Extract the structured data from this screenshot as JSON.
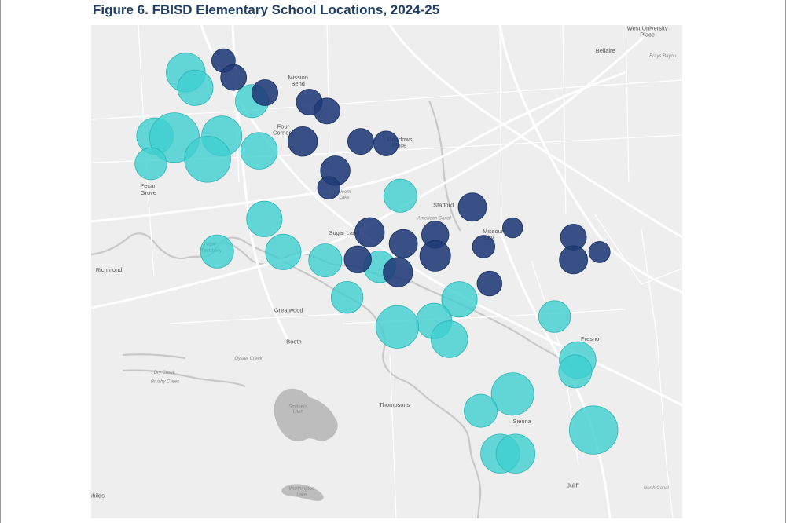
{
  "figure": {
    "title": "Figure 6. FBISD Elementary School Locations, 2024-25"
  },
  "colors": {
    "map_background": "#eeeeee",
    "road": "#ffffff",
    "water": "#bdbdbd",
    "marker_navy": "#1f3a77",
    "marker_teal": "#3fcfcf",
    "title": "#1f3f66"
  },
  "places": [
    {
      "label": "Mission",
      "lat": 0.89,
      "lon": 0.35
    },
    {
      "label": "Bend",
      "lat": 0.877,
      "lon": 0.35
    },
    {
      "label": "Four",
      "lat": 0.791,
      "lon": 0.325
    },
    {
      "label": "Corners",
      "lat": 0.778,
      "lon": 0.325
    },
    {
      "label": "Meadows",
      "lat": 0.764,
      "lon": 0.522
    },
    {
      "label": "Place",
      "lat": 0.752,
      "lon": 0.521
    },
    {
      "label": "Pecan",
      "lat": 0.67,
      "lon": 0.097
    },
    {
      "label": "Grove",
      "lat": 0.656,
      "lon": 0.097
    },
    {
      "label": "Stafford",
      "lat": 0.631,
      "lon": 0.596
    },
    {
      "label": "Sugar Land",
      "lat": 0.575,
      "lon": 0.428
    },
    {
      "label": "Missouri",
      "lat": 0.578,
      "lon": 0.681
    },
    {
      "label": "City",
      "lat": 0.565,
      "lon": 0.673
    },
    {
      "label": "New",
      "lat": 0.553,
      "lon": 0.201
    },
    {
      "label": "Territory",
      "lat": 0.54,
      "lon": 0.203
    },
    {
      "label": "Richmond",
      "lat": 0.5,
      "lon": 0.03
    },
    {
      "label": "Greatwood",
      "lat": 0.418,
      "lon": 0.334
    },
    {
      "label": "Fresno",
      "lat": 0.36,
      "lon": 0.844
    },
    {
      "label": "Booth",
      "lat": 0.354,
      "lon": 0.343
    },
    {
      "label": "Thompsons",
      "lat": 0.226,
      "lon": 0.513
    },
    {
      "label": "Sienna",
      "lat": 0.193,
      "lon": 0.729
    },
    {
      "label": "West University",
      "lat": 0.99,
      "lon": 0.941
    },
    {
      "label": "Place",
      "lat": 0.977,
      "lon": 0.941
    },
    {
      "label": "Bellaire",
      "lat": 0.944,
      "lon": 0.87
    },
    {
      "label": "Juliff",
      "lat": 0.063,
      "lon": 0.815
    },
    {
      "label": "rchilds",
      "lat": 0.042,
      "lon": 0.008
    }
  ],
  "water_labels": [
    {
      "label": "Smithers",
      "lat": 0.224,
      "lon": 0.35
    },
    {
      "label": "Lake",
      "lat": 0.214,
      "lon": 0.35
    },
    {
      "label": "Brushy Creek",
      "lat": 0.275,
      "lon": 0.125
    },
    {
      "label": "Dry Creek",
      "lat": 0.293,
      "lon": 0.124
    },
    {
      "label": "Oyster Creek",
      "lat": 0.322,
      "lon": 0.266
    },
    {
      "label": "American Canal",
      "lat": 0.606,
      "lon": 0.58
    },
    {
      "label": "Alcorn",
      "lat": 0.659,
      "lon": 0.428
    },
    {
      "label": "Lake",
      "lat": 0.648,
      "lon": 0.428
    },
    {
      "label": "Brays Bayou",
      "lat": 0.935,
      "lon": 0.967
    },
    {
      "label": "Worthington",
      "lat": 0.057,
      "lon": 0.356
    },
    {
      "label": "Lake",
      "lat": 0.045,
      "lon": 0.356
    },
    {
      "label": "North Canal",
      "lat": 0.059,
      "lon": 0.956
    }
  ],
  "schools": [
    {
      "category": "navy",
      "lat": 0.928,
      "lon": 0.224,
      "size": 0.02
    },
    {
      "category": "navy",
      "lat": 0.894,
      "lon": 0.241,
      "size": 0.022
    },
    {
      "category": "navy",
      "lat": 0.863,
      "lon": 0.294,
      "size": 0.022
    },
    {
      "category": "navy",
      "lat": 0.844,
      "lon": 0.369,
      "size": 0.022
    },
    {
      "category": "navy",
      "lat": 0.826,
      "lon": 0.399,
      "size": 0.022
    },
    {
      "category": "navy",
      "lat": 0.764,
      "lon": 0.358,
      "size": 0.025
    },
    {
      "category": "navy",
      "lat": 0.764,
      "lon": 0.456,
      "size": 0.022
    },
    {
      "category": "navy",
      "lat": 0.76,
      "lon": 0.499,
      "size": 0.021
    },
    {
      "category": "navy",
      "lat": 0.705,
      "lon": 0.413,
      "size": 0.025
    },
    {
      "category": "navy",
      "lat": 0.67,
      "lon": 0.402,
      "size": 0.019
    },
    {
      "category": "navy",
      "lat": 0.631,
      "lon": 0.645,
      "size": 0.024
    },
    {
      "category": "navy",
      "lat": 0.589,
      "lon": 0.713,
      "size": 0.017
    },
    {
      "category": "navy",
      "lat": 0.58,
      "lon": 0.471,
      "size": 0.025
    },
    {
      "category": "navy",
      "lat": 0.575,
      "lon": 0.582,
      "size": 0.023
    },
    {
      "category": "navy",
      "lat": 0.57,
      "lon": 0.816,
      "size": 0.022
    },
    {
      "category": "navy",
      "lat": 0.557,
      "lon": 0.528,
      "size": 0.024
    },
    {
      "category": "navy",
      "lat": 0.551,
      "lon": 0.664,
      "size": 0.019
    },
    {
      "category": "navy",
      "lat": 0.54,
      "lon": 0.86,
      "size": 0.018
    },
    {
      "category": "navy",
      "lat": 0.532,
      "lon": 0.582,
      "size": 0.026
    },
    {
      "category": "navy",
      "lat": 0.525,
      "lon": 0.451,
      "size": 0.023
    },
    {
      "category": "navy",
      "lat": 0.524,
      "lon": 0.816,
      "size": 0.024
    },
    {
      "category": "navy",
      "lat": 0.499,
      "lon": 0.519,
      "size": 0.025
    },
    {
      "category": "navy",
      "lat": 0.476,
      "lon": 0.674,
      "size": 0.021
    },
    {
      "category": "teal",
      "lat": 0.904,
      "lon": 0.16,
      "size": 0.033
    },
    {
      "category": "teal",
      "lat": 0.873,
      "lon": 0.176,
      "size": 0.03
    },
    {
      "category": "teal",
      "lat": 0.846,
      "lon": 0.272,
      "size": 0.028
    },
    {
      "category": "teal",
      "lat": 0.775,
      "lon": 0.108,
      "size": 0.031
    },
    {
      "category": "teal",
      "lat": 0.772,
      "lon": 0.141,
      "size": 0.042
    },
    {
      "category": "teal",
      "lat": 0.775,
      "lon": 0.221,
      "size": 0.034
    },
    {
      "category": "teal",
      "lat": 0.745,
      "lon": 0.284,
      "size": 0.031
    },
    {
      "category": "teal",
      "lat": 0.728,
      "lon": 0.197,
      "size": 0.039
    },
    {
      "category": "teal",
      "lat": 0.719,
      "lon": 0.101,
      "size": 0.027
    },
    {
      "category": "teal",
      "lat": 0.654,
      "lon": 0.523,
      "size": 0.028
    },
    {
      "category": "teal",
      "lat": 0.607,
      "lon": 0.293,
      "size": 0.03
    },
    {
      "category": "teal",
      "lat": 0.541,
      "lon": 0.213,
      "size": 0.028
    },
    {
      "category": "teal",
      "lat": 0.54,
      "lon": 0.325,
      "size": 0.03
    },
    {
      "category": "teal",
      "lat": 0.523,
      "lon": 0.396,
      "size": 0.028
    },
    {
      "category": "teal",
      "lat": 0.51,
      "lon": 0.488,
      "size": 0.027
    },
    {
      "category": "teal",
      "lat": 0.448,
      "lon": 0.433,
      "size": 0.027
    },
    {
      "category": "teal",
      "lat": 0.444,
      "lon": 0.623,
      "size": 0.03
    },
    {
      "category": "teal",
      "lat": 0.409,
      "lon": 0.784,
      "size": 0.027
    },
    {
      "category": "teal",
      "lat": 0.4,
      "lon": 0.58,
      "size": 0.03
    },
    {
      "category": "teal",
      "lat": 0.388,
      "lon": 0.518,
      "size": 0.036
    },
    {
      "category": "teal",
      "lat": 0.363,
      "lon": 0.606,
      "size": 0.031
    },
    {
      "category": "teal",
      "lat": 0.321,
      "lon": 0.823,
      "size": 0.031
    },
    {
      "category": "teal",
      "lat": 0.298,
      "lon": 0.819,
      "size": 0.028
    },
    {
      "category": "teal",
      "lat": 0.252,
      "lon": 0.713,
      "size": 0.036
    },
    {
      "category": "teal",
      "lat": 0.218,
      "lon": 0.659,
      "size": 0.028
    },
    {
      "category": "teal",
      "lat": 0.179,
      "lon": 0.85,
      "size": 0.041
    },
    {
      "category": "teal",
      "lat": 0.131,
      "lon": 0.692,
      "size": 0.033
    },
    {
      "category": "teal",
      "lat": 0.131,
      "lon": 0.718,
      "size": 0.033
    }
  ]
}
